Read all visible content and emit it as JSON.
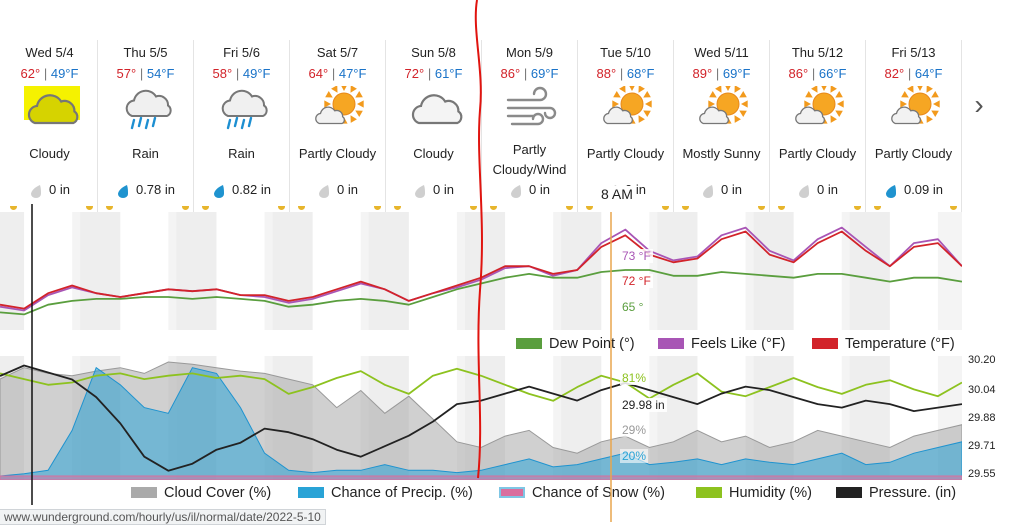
{
  "forecast": {
    "days": [
      {
        "name": "Wed 5/4",
        "hi": "62°",
        "lo": "49°F",
        "icon": "cloudy-icon",
        "condition": "Cloudy",
        "precip": "0 in",
        "drop": "gray"
      },
      {
        "name": "Thu 5/5",
        "hi": "57°",
        "lo": "54°F",
        "icon": "rain-icon",
        "condition": "Rain",
        "precip": "0.78 in",
        "drop": "blue"
      },
      {
        "name": "Fri 5/6",
        "hi": "58°",
        "lo": "49°F",
        "icon": "rain-icon",
        "condition": "Rain",
        "precip": "0.82 in",
        "drop": "blue"
      },
      {
        "name": "Sat 5/7",
        "hi": "64°",
        "lo": "47°F",
        "icon": "partly-cloudy-icon",
        "condition": "Partly Cloudy",
        "precip": "0 in",
        "drop": "gray"
      },
      {
        "name": "Sun 5/8",
        "hi": "72°",
        "lo": "61°F",
        "icon": "cloudy-icon",
        "condition": "Cloudy",
        "precip": "0 in",
        "drop": "gray"
      },
      {
        "name": "Mon 5/9",
        "hi": "86°",
        "lo": "69°F",
        "icon": "wind-icon",
        "condition": "Partly Cloudy/Wind",
        "precip": "0 in",
        "drop": "gray"
      },
      {
        "name": "Tue 5/10",
        "hi": "88°",
        "lo": "68°F",
        "icon": "partly-cloudy-icon",
        "condition": "Partly Cloudy",
        "precip": "0 in",
        "drop": "gray"
      },
      {
        "name": "Wed 5/11",
        "hi": "89°",
        "lo": "69°F",
        "icon": "partly-cloudy-icon",
        "condition": "Mostly Sunny",
        "precip": "0 in",
        "drop": "gray"
      },
      {
        "name": "Thu 5/12",
        "hi": "86°",
        "lo": "66°F",
        "icon": "partly-cloudy-icon",
        "condition": "Partly Cloudy",
        "precip": "0 in",
        "drop": "gray"
      },
      {
        "name": "Fri 5/13",
        "hi": "82°",
        "lo": "64°F",
        "icon": "partly-cloudy-icon",
        "condition": "Partly Cloudy",
        "precip": "0.09 in",
        "drop": "blue"
      }
    ],
    "sep": "|",
    "cursor_time": "8 AM",
    "next_icon": "chevron-right-icon"
  },
  "colors": {
    "temperature": "#d2232a",
    "feels_like": "#a855b5",
    "dew_point": "#5a9e3e",
    "cloud_cover": "#aaaaaa",
    "precip_chance": "#29a3d6",
    "snow_chance": "#d96e9e",
    "humidity": "#8dc21f",
    "pressure": "#222222",
    "cursor_line": "#e8a64e",
    "annotation_red": "#e0140f",
    "highlight_yellow": "#f5f200"
  },
  "status_url": "www.wunderground.com/hourly/us/il/normal/date/2022-5-10",
  "chart_data": [
    {
      "type": "line",
      "x": [
        0,
        6,
        12,
        18,
        24,
        30,
        36,
        42,
        48,
        54,
        60,
        66,
        72,
        78,
        84,
        90,
        96,
        102,
        108,
        114,
        120,
        126,
        132,
        138,
        144,
        150,
        156,
        162,
        168,
        174,
        180,
        186,
        192,
        198,
        204,
        210,
        216,
        222,
        228,
        234,
        240
      ],
      "x_unit": "hours from 12 AM Wed 5/4",
      "series": [
        {
          "name": "Temperature (°F)",
          "values": [
            50,
            48,
            56,
            60,
            56,
            54,
            56,
            58,
            57,
            58,
            55,
            55,
            52,
            54,
            58,
            62,
            58,
            52,
            56,
            60,
            64,
            70,
            70,
            66,
            68,
            80,
            86,
            76,
            72,
            74,
            84,
            88,
            76,
            72,
            82,
            88,
            78,
            70,
            80,
            82,
            70
          ]
        },
        {
          "name": "Feels Like (°F)",
          "values": [
            49,
            47,
            55,
            59,
            56,
            54,
            56,
            58,
            57,
            58,
            55,
            54,
            51,
            53,
            57,
            61,
            58,
            52,
            56,
            59,
            63,
            69,
            70,
            65,
            68,
            82,
            89,
            78,
            73,
            75,
            86,
            90,
            78,
            73,
            84,
            90,
            80,
            70,
            82,
            84,
            70
          ]
        },
        {
          "name": "Dew Point (°)",
          "values": [
            46,
            45,
            50,
            52,
            53,
            53,
            54,
            54,
            53,
            54,
            53,
            52,
            49,
            50,
            52,
            53,
            52,
            50,
            54,
            58,
            61,
            64,
            66,
            64,
            64,
            67,
            68,
            68,
            65,
            65,
            67,
            66,
            65,
            64,
            66,
            66,
            64,
            62,
            64,
            64,
            62
          ]
        }
      ],
      "readouts": {
        "temperature": "72 °F",
        "feels_like": "73 °F",
        "dew_point": "65 °"
      },
      "legend": [
        "Dew Point (°)",
        "Feels Like (°F)",
        "Temperature (°F)"
      ]
    },
    {
      "type": "line",
      "x": [
        0,
        6,
        12,
        18,
        24,
        30,
        36,
        42,
        48,
        54,
        60,
        66,
        72,
        78,
        84,
        90,
        96,
        102,
        108,
        114,
        120,
        126,
        132,
        138,
        144,
        150,
        156,
        162,
        168,
        174,
        180,
        186,
        192,
        198,
        204,
        210,
        216,
        222,
        228,
        234,
        240
      ],
      "x_unit": "hours from 12 AM Wed 5/4",
      "series": [
        {
          "name": "Cloud Cover (%)",
          "values": [
            85,
            95,
            90,
            88,
            92,
            95,
            90,
            100,
            98,
            95,
            92,
            90,
            85,
            80,
            60,
            75,
            55,
            70,
            50,
            30,
            25,
            35,
            40,
            25,
            20,
            30,
            35,
            25,
            30,
            40,
            30,
            35,
            25,
            30,
            40,
            35,
            30,
            25,
            35,
            40,
            45
          ]
        },
        {
          "name": "Chance of Precip. (%)",
          "values": [
            0,
            2,
            5,
            40,
            95,
            80,
            60,
            55,
            95,
            90,
            60,
            20,
            5,
            3,
            5,
            5,
            10,
            5,
            5,
            3,
            5,
            10,
            15,
            8,
            10,
            15,
            20,
            10,
            12,
            15,
            10,
            15,
            12,
            10,
            15,
            20,
            10,
            12,
            20,
            25,
            30
          ]
        },
        {
          "name": "Chance of Snow (%)",
          "values": [
            0,
            0,
            0,
            0,
            0,
            0,
            0,
            0,
            0,
            0,
            0,
            0,
            0,
            0,
            0,
            0,
            0,
            0,
            0,
            0,
            0,
            0,
            0,
            0,
            0,
            0,
            0,
            0,
            0,
            0,
            0,
            0,
            0,
            0,
            0,
            0,
            0,
            0,
            0,
            0,
            0
          ]
        },
        {
          "name": "Humidity (%)",
          "values": [
            90,
            85,
            80,
            82,
            88,
            90,
            85,
            88,
            90,
            86,
            88,
            85,
            72,
            78,
            86,
            92,
            80,
            72,
            88,
            94,
            88,
            80,
            72,
            66,
            78,
            88,
            82,
            68,
            80,
            90,
            74,
            70,
            78,
            86,
            78,
            72,
            80,
            84,
            76,
            70,
            82
          ]
        },
        {
          "name": "Pressure. (in)",
          "values": [
            30.12,
            30.18,
            30.14,
            30.1,
            30.0,
            29.85,
            29.66,
            29.58,
            29.62,
            29.7,
            29.74,
            29.82,
            29.8,
            29.76,
            29.7,
            29.66,
            29.72,
            29.78,
            29.86,
            29.96,
            29.98,
            30.02,
            30.06,
            30.02,
            29.98,
            30.04,
            30.08,
            30.04,
            30.0,
            29.96,
            30.02,
            30.06,
            30.04,
            30.0,
            29.96,
            29.94,
            29.98,
            29.96,
            29.92,
            29.94,
            29.96
          ]
        }
      ],
      "readouts": {
        "humidity": "81%",
        "pressure": "29.98 in",
        "cloud_cover": "29%",
        "precip_chance": "20%"
      },
      "y2_ticks": [
        "30.20",
        "30.04",
        "29.88",
        "29.71",
        "29.55"
      ],
      "y2lim": [
        29.55,
        30.2
      ],
      "ylim": [
        0,
        100
      ],
      "legend": [
        "Cloud Cover (%)",
        "Chance of Precip. (%)",
        "Chance of Snow (%)",
        "Humidity (%)",
        "Pressure. (in)"
      ]
    }
  ]
}
